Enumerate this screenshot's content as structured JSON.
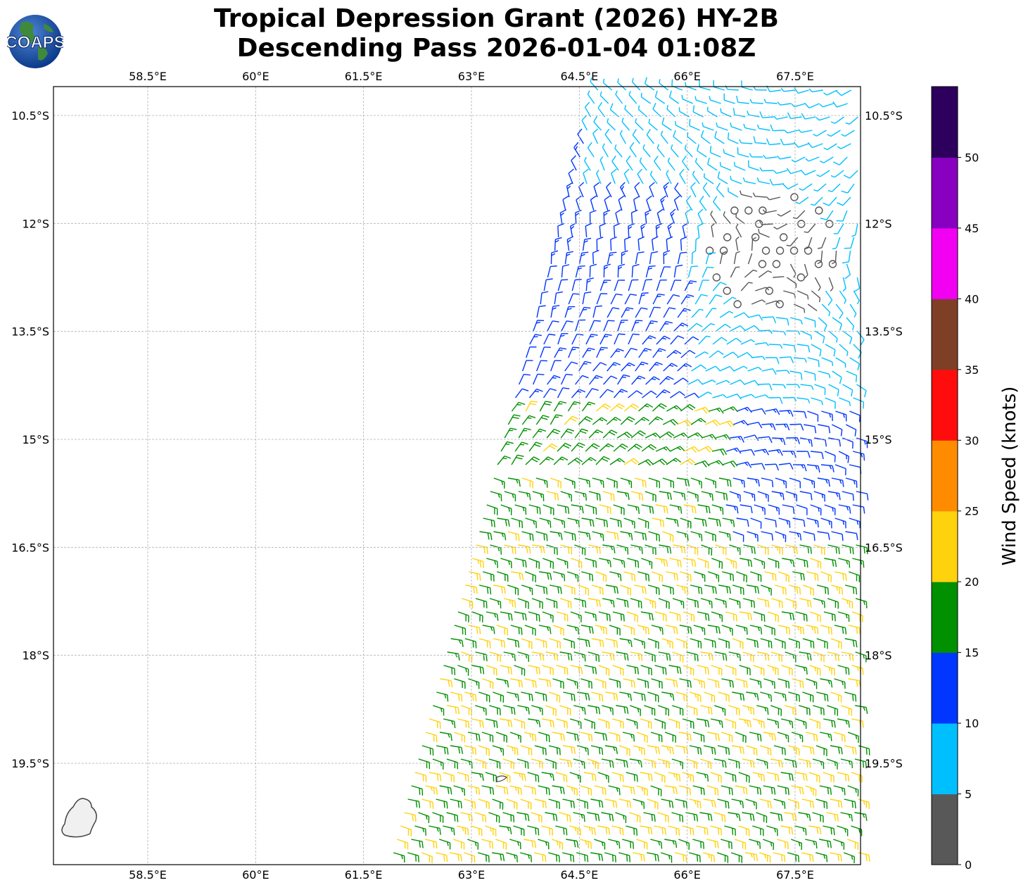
{
  "title": {
    "line1": "Tropical Depression Grant (2026) HY-2B",
    "line2": "Descending Pass 2026-01-04 01:08Z"
  },
  "logo": {
    "text": "COAPS"
  },
  "map": {
    "lon_ticks": [
      "58.5°E",
      "60°E",
      "61.5°E",
      "63°E",
      "64.5°E",
      "66°E",
      "67.5°E"
    ],
    "lon_values": [
      58.5,
      60,
      61.5,
      63,
      64.5,
      66,
      67.5
    ],
    "lat_ticks": [
      "10.5°S",
      "12°S",
      "13.5°S",
      "15°S",
      "16.5°S",
      "18°S",
      "19.5°S"
    ],
    "lat_values": [
      -10.5,
      -12,
      -13.5,
      -15,
      -16.5,
      -18,
      -19.5
    ],
    "lon_range": [
      57.2,
      68.4
    ],
    "lat_range": [
      -20.9,
      -10.1
    ],
    "grid": true,
    "center_circulation": {
      "lon": 67.2,
      "lat": -12.4
    },
    "wind_barbs_units": "knots"
  },
  "colorbar": {
    "label": "Wind Speed (knots)",
    "tick_labels": [
      "0",
      "5",
      "10",
      "15",
      "20",
      "25",
      "30",
      "35",
      "40",
      "45",
      "50"
    ],
    "bins": [
      {
        "min": 0,
        "max": 5,
        "color": "#585858"
      },
      {
        "min": 5,
        "max": 10,
        "color": "#00bfff"
      },
      {
        "min": 10,
        "max": 15,
        "color": "#0036ff"
      },
      {
        "min": 15,
        "max": 20,
        "color": "#009000"
      },
      {
        "min": 20,
        "max": 25,
        "color": "#ffd20e"
      },
      {
        "min": 25,
        "max": 30,
        "color": "#ff8c00"
      },
      {
        "min": 30,
        "max": 35,
        "color": "#ff0d0d"
      },
      {
        "min": 35,
        "max": 40,
        "color": "#7f3f26"
      },
      {
        "min": 40,
        "max": 45,
        "color": "#f200f2"
      },
      {
        "min": 45,
        "max": 50,
        "color": "#8800c0"
      },
      {
        "min": 50,
        "max": 55,
        "color": "#2c005c"
      }
    ]
  }
}
